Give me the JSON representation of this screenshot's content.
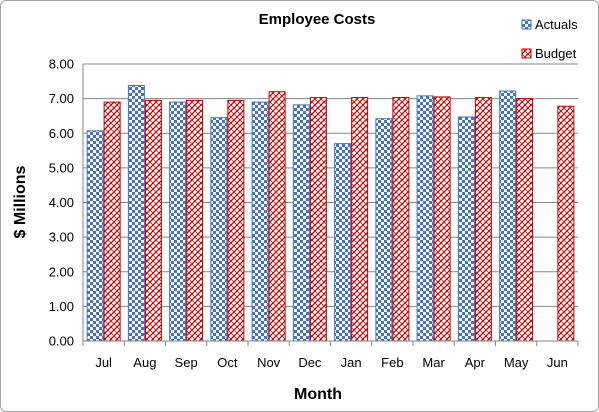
{
  "chart_data": {
    "type": "bar",
    "title": "Employee Costs",
    "xlabel": "Month",
    "ylabel": "$ Millions",
    "ylim": [
      0,
      8
    ],
    "yticks": [
      "0.00",
      "1.00",
      "2.00",
      "3.00",
      "4.00",
      "5.00",
      "6.00",
      "7.00",
      "8.00"
    ],
    "grid": true,
    "legend_position": "top-right",
    "categories": [
      "Jul",
      "Aug",
      "Sep",
      "Oct",
      "Nov",
      "Dec",
      "Jan",
      "Feb",
      "Mar",
      "Apr",
      "May",
      "Jun"
    ],
    "series": [
      {
        "name": "Actuals",
        "color": "#4472c4",
        "values": [
          6.07,
          7.38,
          6.9,
          6.45,
          6.9,
          6.82,
          5.7,
          6.42,
          7.08,
          6.47,
          7.22,
          null
        ]
      },
      {
        "name": "Budget",
        "color": "#c00000",
        "values": [
          6.9,
          6.95,
          6.95,
          6.95,
          7.2,
          7.03,
          7.03,
          7.03,
          7.05,
          7.03,
          7.0,
          6.78
        ]
      }
    ]
  }
}
